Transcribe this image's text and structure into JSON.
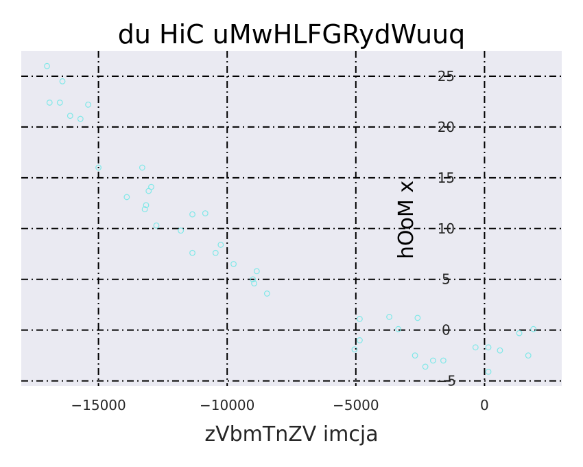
{
  "chart_data": {
    "type": "scatter",
    "title": "du HiC uMwHLFGRydWuuq",
    "xlabel": "zVbmTnZV imcja",
    "ylabel": "hOoM x",
    "xlim": [
      -18000,
      3000
    ],
    "ylim": [
      -5.5,
      27.5
    ],
    "xticks": [
      -15000,
      -10000,
      -5000,
      0
    ],
    "xtick_labels": [
      "−15000",
      "−10000",
      "−5000",
      "0"
    ],
    "yticks": [
      -5,
      0,
      5,
      10,
      15,
      20,
      25
    ],
    "ytick_labels": [
      "−5",
      "0",
      "5",
      "10",
      "15",
      "20",
      "25"
    ],
    "grid": true,
    "y_axis_position": "inside at x=0",
    "colors": {
      "background": "#eaeaf2",
      "marker": "#7fe8e8",
      "grid": "#000000"
    },
    "points": [
      {
        "x": -17000,
        "y": 26.0
      },
      {
        "x": -16900,
        "y": 22.4
      },
      {
        "x": -16500,
        "y": 22.4
      },
      {
        "x": -16400,
        "y": 24.5
      },
      {
        "x": -16100,
        "y": 21.1
      },
      {
        "x": -15700,
        "y": 20.8
      },
      {
        "x": -15400,
        "y": 22.2
      },
      {
        "x": -15000,
        "y": 16.0
      },
      {
        "x": -13900,
        "y": 13.1
      },
      {
        "x": -13300,
        "y": 16.0
      },
      {
        "x": -13200,
        "y": 11.9
      },
      {
        "x": -13150,
        "y": 12.3
      },
      {
        "x": -13050,
        "y": 13.7
      },
      {
        "x": -12950,
        "y": 14.1
      },
      {
        "x": -12750,
        "y": 10.3
      },
      {
        "x": -11800,
        "y": 9.8
      },
      {
        "x": -11350,
        "y": 11.4
      },
      {
        "x": -11350,
        "y": 7.6
      },
      {
        "x": -10850,
        "y": 11.5
      },
      {
        "x": -10450,
        "y": 7.6
      },
      {
        "x": -10250,
        "y": 8.4
      },
      {
        "x": -9750,
        "y": 6.5
      },
      {
        "x": -9000,
        "y": 5.0
      },
      {
        "x": -8950,
        "y": 4.6
      },
      {
        "x": -8850,
        "y": 5.8
      },
      {
        "x": -8450,
        "y": 3.6
      },
      {
        "x": -5050,
        "y": -1.9
      },
      {
        "x": -4850,
        "y": 1.1
      },
      {
        "x": -4850,
        "y": -1.0
      },
      {
        "x": -3700,
        "y": 1.3
      },
      {
        "x": -3350,
        "y": 0.1
      },
      {
        "x": -2700,
        "y": -2.5
      },
      {
        "x": -2600,
        "y": 1.2
      },
      {
        "x": -2300,
        "y": -3.6
      },
      {
        "x": -2000,
        "y": -3.0
      },
      {
        "x": -1600,
        "y": -3.0
      },
      {
        "x": -350,
        "y": -1.7
      },
      {
        "x": 150,
        "y": -1.7
      },
      {
        "x": 150,
        "y": -4.1
      },
      {
        "x": 600,
        "y": -2.0
      },
      {
        "x": 1350,
        "y": -0.3
      },
      {
        "x": 1700,
        "y": -2.5
      },
      {
        "x": 1900,
        "y": 0.1
      }
    ]
  }
}
